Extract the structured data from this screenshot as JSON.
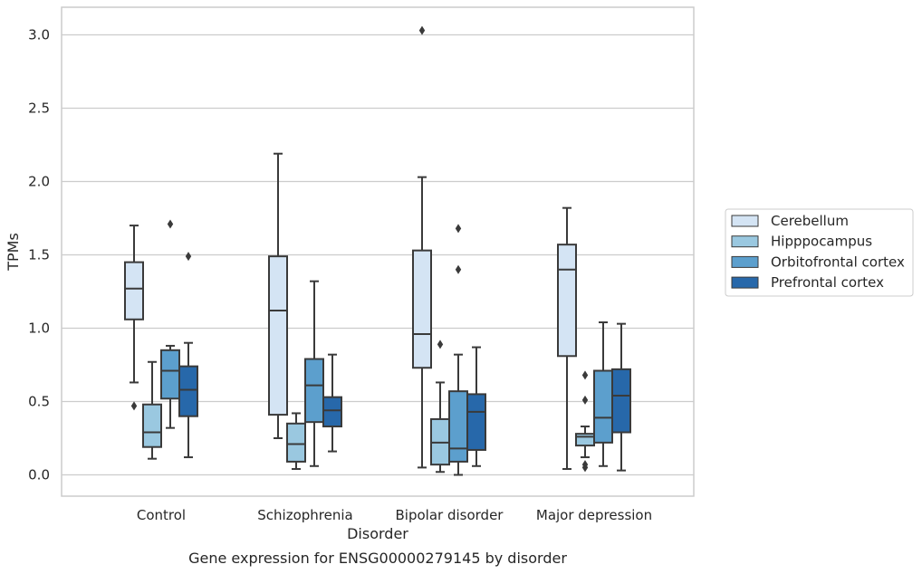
{
  "caption": "Gene expression for ENSG00000279145 by disorder",
  "chart_data": {
    "type": "box",
    "title": "",
    "xlabel": "Disorder",
    "ylabel": "TPMs",
    "ylim": [
      -0.15,
      3.19
    ],
    "yticks": [
      "0.0",
      "0.5",
      "1.0",
      "1.5",
      "2.0",
      "2.5",
      "3.0"
    ],
    "categories": [
      "Control",
      "Schizophrenia",
      "Bipolar disorder",
      "Major depression"
    ],
    "grid": "horizontal",
    "legend_position": "right",
    "series": [
      {
        "name": "Cerebellum",
        "color": "#d4e4f4",
        "boxes": [
          {
            "whisker_low": 0.63,
            "q1": 1.06,
            "median": 1.27,
            "q3": 1.45,
            "whisker_high": 1.7,
            "outliers": [
              0.47
            ]
          },
          {
            "whisker_low": 0.25,
            "q1": 0.41,
            "median": 1.12,
            "q3": 1.49,
            "whisker_high": 2.19,
            "outliers": []
          },
          {
            "whisker_low": 0.05,
            "q1": 0.73,
            "median": 0.96,
            "q3": 1.53,
            "whisker_high": 2.03,
            "outliers": [
              3.03
            ]
          },
          {
            "whisker_low": 0.04,
            "q1": 0.81,
            "median": 1.4,
            "q3": 1.57,
            "whisker_high": 1.82,
            "outliers": []
          }
        ]
      },
      {
        "name": "Hipppocampus",
        "color": "#9ac8e0",
        "boxes": [
          {
            "whisker_low": 0.11,
            "q1": 0.19,
            "median": 0.29,
            "q3": 0.48,
            "whisker_high": 0.77,
            "outliers": []
          },
          {
            "whisker_low": 0.04,
            "q1": 0.09,
            "median": 0.21,
            "q3": 0.35,
            "whisker_high": 0.42,
            "outliers": []
          },
          {
            "whisker_low": 0.02,
            "q1": 0.07,
            "median": 0.22,
            "q3": 0.38,
            "whisker_high": 0.63,
            "outliers": [
              0.89
            ]
          },
          {
            "whisker_low": 0.12,
            "q1": 0.2,
            "median": 0.26,
            "q3": 0.28,
            "whisker_high": 0.33,
            "outliers": [
              0.68,
              0.51,
              0.07,
              0.05
            ]
          }
        ]
      },
      {
        "name": "Orbitofrontal cortex",
        "color": "#5c9fcd",
        "boxes": [
          {
            "whisker_low": 0.32,
            "q1": 0.52,
            "median": 0.71,
            "q3": 0.85,
            "whisker_high": 0.88,
            "outliers": [
              1.71
            ]
          },
          {
            "whisker_low": 0.06,
            "q1": 0.36,
            "median": 0.61,
            "q3": 0.79,
            "whisker_high": 1.32,
            "outliers": []
          },
          {
            "whisker_low": 0.0,
            "q1": 0.09,
            "median": 0.18,
            "q3": 0.57,
            "whisker_high": 0.82,
            "outliers": [
              1.68,
              1.4
            ]
          },
          {
            "whisker_low": 0.06,
            "q1": 0.22,
            "median": 0.39,
            "q3": 0.71,
            "whisker_high": 1.04,
            "outliers": []
          }
        ]
      },
      {
        "name": "Prefrontal cortex",
        "color": "#2768aa",
        "boxes": [
          {
            "whisker_low": 0.12,
            "q1": 0.4,
            "median": 0.58,
            "q3": 0.74,
            "whisker_high": 0.9,
            "outliers": [
              1.49
            ]
          },
          {
            "whisker_low": 0.16,
            "q1": 0.33,
            "median": 0.44,
            "q3": 0.53,
            "whisker_high": 0.82,
            "outliers": []
          },
          {
            "whisker_low": 0.06,
            "q1": 0.17,
            "median": 0.43,
            "q3": 0.55,
            "whisker_high": 0.87,
            "outliers": []
          },
          {
            "whisker_low": 0.03,
            "q1": 0.29,
            "median": 0.54,
            "q3": 0.72,
            "whisker_high": 1.03,
            "outliers": []
          }
        ]
      }
    ]
  }
}
